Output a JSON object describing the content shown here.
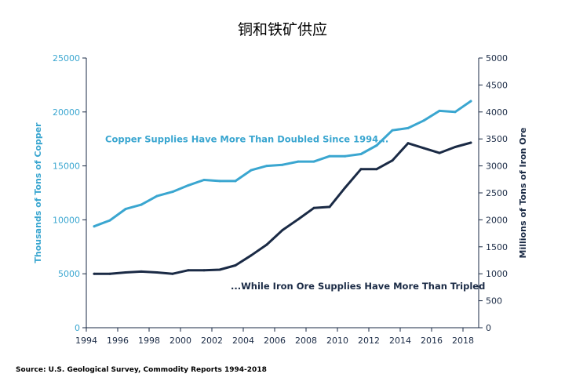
{
  "colors": {
    "copper": "#3aa6d0",
    "iron": "#1a2a45",
    "title": "#1a2a45",
    "axis": "#1a2a45",
    "right_axis_text": "#1a2a45"
  },
  "chart_data": {
    "type": "line",
    "title": "铜和铁矿供应",
    "xlabel": "",
    "ylabel_left": "Thousands of Tons of Copper",
    "ylabel_right": "Millions of Tons of Iron Ore",
    "xlim": [
      1994,
      2019
    ],
    "ylim_left": [
      0,
      25000
    ],
    "ylim_right": [
      0,
      5000
    ],
    "x_ticks": [
      1994,
      1996,
      1998,
      2000,
      2002,
      2004,
      2006,
      2008,
      2010,
      2012,
      2014,
      2016,
      2018
    ],
    "y_left_ticks": [
      0,
      5000,
      10000,
      15000,
      20000,
      25000
    ],
    "y_right_ticks": [
      0,
      500,
      1000,
      1500,
      2000,
      2500,
      3000,
      3500,
      4000,
      4500,
      5000
    ],
    "grid": false,
    "series": [
      {
        "name": "Copper",
        "axis": "left",
        "color_key": "copper",
        "x": [
          1994.5,
          1995.5,
          1996.5,
          1997.5,
          1998.5,
          1999.5,
          2000.5,
          2001.5,
          2002.5,
          2003.5,
          2004.5,
          2005.5,
          2006.5,
          2007.5,
          2008.5,
          2009.5,
          2010.5,
          2011.5,
          2012.5,
          2013.5,
          2014.5,
          2015.5,
          2016.5,
          2017.5,
          2018.5
        ],
        "values": [
          9400,
          9950,
          11000,
          11400,
          12200,
          12600,
          13200,
          13700,
          13600,
          13600,
          14600,
          15000,
          15100,
          15400,
          15400,
          15900,
          15900,
          16100,
          16900,
          18300,
          18500,
          19200,
          20100,
          20000,
          21000
        ]
      },
      {
        "name": "Iron Ore",
        "axis": "right",
        "color_key": "iron",
        "x": [
          1994.5,
          1995.5,
          1996.5,
          1997.5,
          1998.5,
          1999.5,
          2000.5,
          2001.5,
          2002.5,
          2003.5,
          2004.5,
          2005.5,
          2006.5,
          2007.5,
          2008.5,
          2009.5,
          2010.5,
          2011.5,
          2012.5,
          2013.5,
          2014.5,
          2015.5,
          2016.5,
          2017.5,
          2018.5
        ],
        "values": [
          1000,
          1000,
          1025,
          1040,
          1025,
          1000,
          1065,
          1065,
          1075,
          1155,
          1340,
          1540,
          1810,
          2010,
          2220,
          2240,
          2600,
          2940,
          2940,
          3100,
          3420,
          3330,
          3240,
          3350,
          3430
        ]
      }
    ],
    "annotations": [
      {
        "text": "Copper Supplies Have More Than Doubled Since 1994...",
        "color_key": "copper",
        "x": 1995.2,
        "axis": "left",
        "y": 17200
      },
      {
        "text": "...While Iron Ore Supplies Have More Than Tripled",
        "color_key": "iron",
        "x": 2003.2,
        "axis": "right",
        "y": 710
      }
    ],
    "source": "Source: U.S. Geological Survey, Commodity Reports 1994-2018"
  }
}
